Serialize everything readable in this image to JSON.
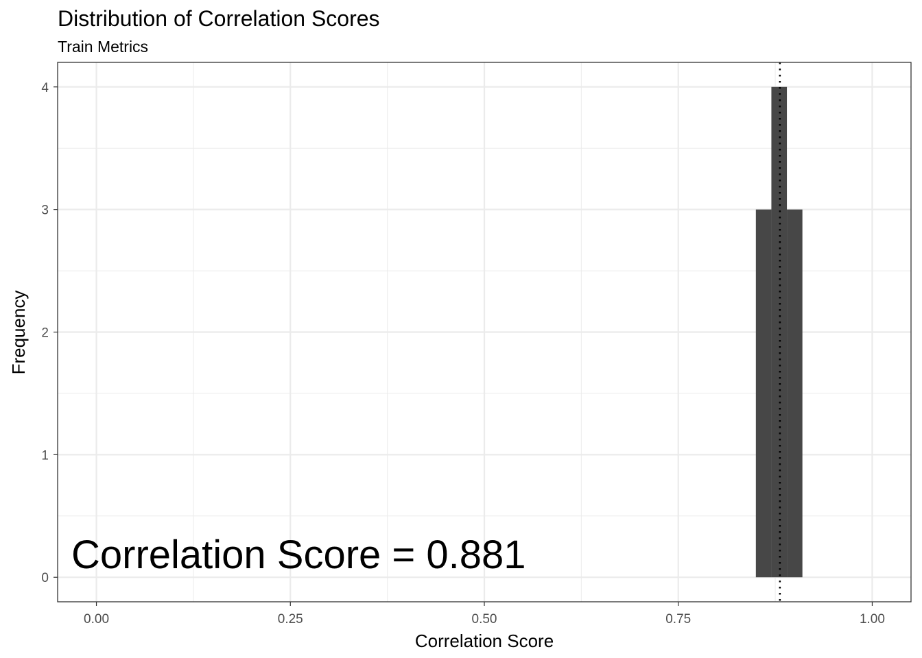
{
  "chart_data": {
    "type": "bar",
    "title": "Distribution of Correlation Scores",
    "subtitle": "Train Metrics",
    "xlabel": "Correlation Score",
    "ylabel": "Frequency",
    "xlim": [
      -0.05,
      1.05
    ],
    "ylim": [
      -0.2,
      4.2
    ],
    "x_ticks": [
      {
        "value": 0.0,
        "label": "0.00"
      },
      {
        "value": 0.25,
        "label": "0.25"
      },
      {
        "value": 0.5,
        "label": "0.50"
      },
      {
        "value": 0.75,
        "label": "0.75"
      },
      {
        "value": 1.0,
        "label": "1.00"
      }
    ],
    "y_ticks": [
      {
        "value": 0,
        "label": "0"
      },
      {
        "value": 1,
        "label": "1"
      },
      {
        "value": 2,
        "label": "2"
      },
      {
        "value": 3,
        "label": "3"
      },
      {
        "value": 4,
        "label": "4"
      }
    ],
    "x_minor_ticks": [
      0.125,
      0.375,
      0.625,
      0.875
    ],
    "y_minor_ticks": [
      0.5,
      1.5,
      2.5,
      3.5
    ],
    "bins": [
      {
        "x0": 0.85,
        "x1": 0.87,
        "count": 3
      },
      {
        "x0": 0.87,
        "x1": 0.89,
        "count": 4
      },
      {
        "x0": 0.89,
        "x1": 0.91,
        "count": 3
      }
    ],
    "mean_line": 0.881,
    "annotation": "Correlation Score = 0.881",
    "grid": true,
    "bar_color": "#474747",
    "grid_color": "#ebebeb",
    "line_style": "dotted"
  }
}
